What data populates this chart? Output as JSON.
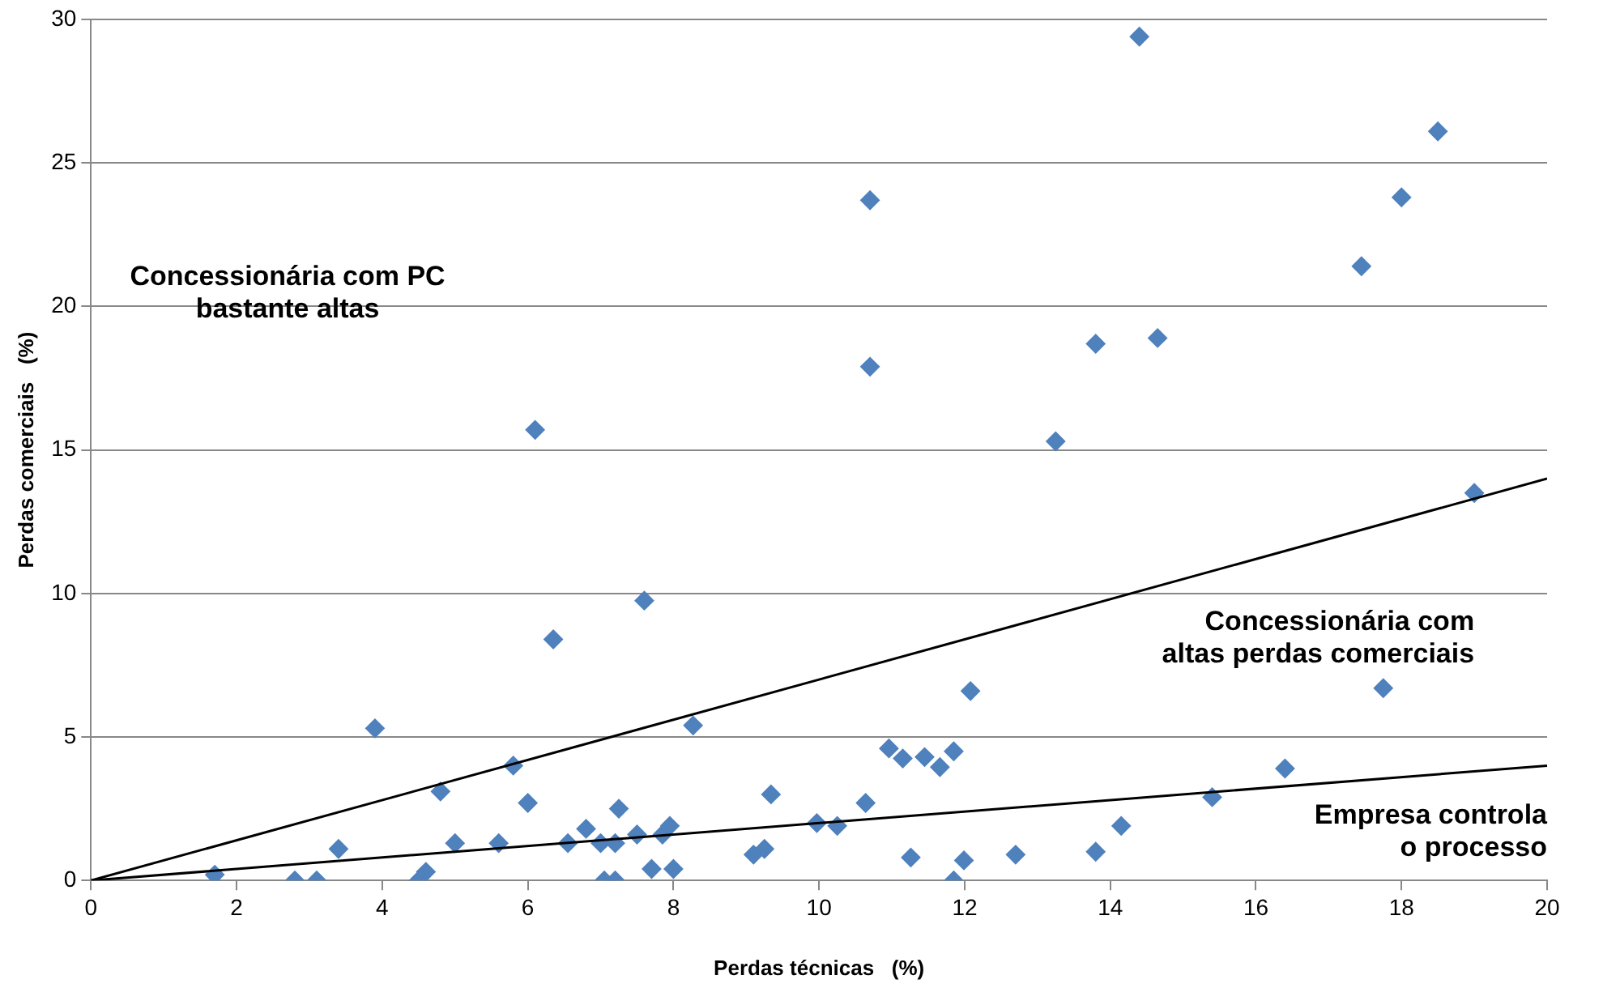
{
  "chart_data": {
    "type": "scatter",
    "xlabel": "Perdas técnicas   (%)",
    "ylabel": "Perdas comerciais   (%)",
    "xlim": [
      0,
      20
    ],
    "xticks": [
      0,
      2,
      4,
      6,
      8,
      10,
      12,
      14,
      16,
      18,
      20
    ],
    "ylim": [
      0,
      30
    ],
    "yticks": [
      0,
      5,
      10,
      15,
      20,
      25,
      30
    ],
    "grid": "y",
    "legend": false,
    "marker": "diamond",
    "annotations": [
      "Concessionária com PC\nbastante altas",
      "Concessionária com\naltas perdas comerciais",
      "Empresa controla\no processo"
    ],
    "series": [
      {
        "color": "#4f81bd",
        "x": [
          1.7,
          2.8,
          3.1,
          3.4,
          3.9,
          4.5,
          4.6,
          4.8,
          5.0,
          5.6,
          5.8,
          6.0,
          6.1,
          6.35,
          6.55,
          6.8,
          7.0,
          7.05,
          7.2,
          7.2,
          7.25,
          7.5,
          7.6,
          7.7,
          7.85,
          7.95,
          8.0,
          8.27,
          9.1,
          9.25,
          9.34,
          9.97,
          10.25,
          10.64,
          10.7,
          10.7,
          10.96,
          11.15,
          11.26,
          11.45,
          11.66,
          11.85,
          11.85,
          11.99,
          12.08,
          12.7,
          13.25,
          13.8,
          13.8,
          14.15,
          14.4,
          14.65,
          15.4,
          16.4,
          17.45,
          17.75,
          18.0,
          18.5,
          19.0
        ],
        "values": [
          0.2,
          0.0,
          0.0,
          1.1,
          5.3,
          0.0,
          0.3,
          3.1,
          1.3,
          1.3,
          4.0,
          2.7,
          15.7,
          8.4,
          1.3,
          1.8,
          1.3,
          0.0,
          0.0,
          1.3,
          2.5,
          1.6,
          9.75,
          0.4,
          1.6,
          1.9,
          0.4,
          5.4,
          0.9,
          1.1,
          3.0,
          2.0,
          1.9,
          2.7,
          23.7,
          17.9,
          4.6,
          4.25,
          0.8,
          4.3,
          3.95,
          4.5,
          0.0,
          0.7,
          6.6,
          0.9,
          15.3,
          1.0,
          18.7,
          1.9,
          29.4,
          18.9,
          2.9,
          3.9,
          21.4,
          6.7,
          23.8,
          26.1,
          13.5
        ]
      },
      {
        "type": "line",
        "color": "#000000",
        "marker": "none",
        "x": [
          0,
          20
        ],
        "values": [
          0,
          14
        ]
      },
      {
        "type": "line",
        "color": "#000000",
        "marker": "none",
        "x": [
          0,
          20
        ],
        "values": [
          0,
          4
        ]
      }
    ]
  }
}
